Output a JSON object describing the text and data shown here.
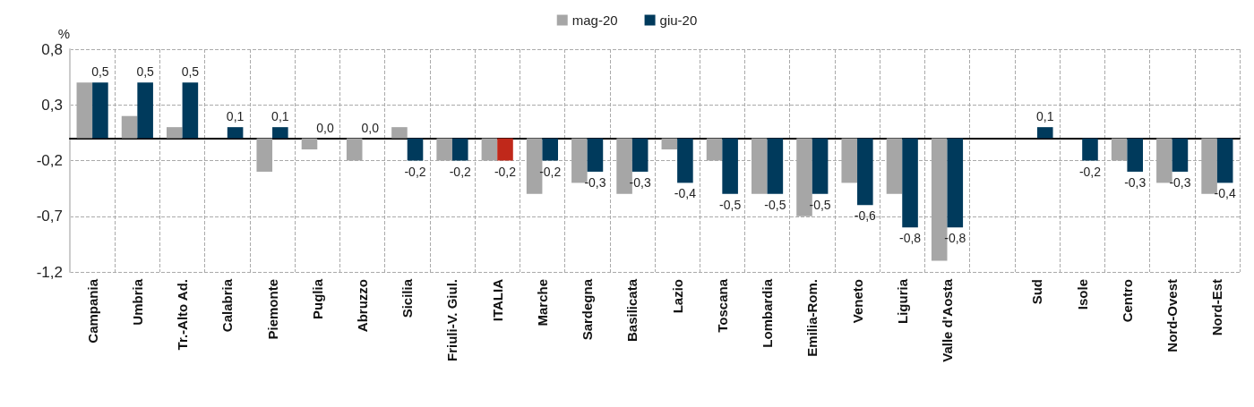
{
  "chart_data": {
    "type": "bar",
    "ylabel": "%",
    "categories": [
      "Campania",
      "Umbria",
      "Tr.-Alto Ad.",
      "Calabria",
      "Piemonte",
      "Puglia",
      "Abruzzo",
      "Sicilia",
      "Friuli-V. Giul.",
      "ITALIA",
      "Marche",
      "Sardegna",
      "Basilicata",
      "Lazio",
      "Toscana",
      "Lombardia",
      "Emilia-Rom.",
      "Veneto",
      "Liguria",
      "Valle d'Aosta",
      null,
      "Sud",
      "Isole",
      "Centro",
      "Nord-Ovest",
      "Nord-Est"
    ],
    "series": [
      {
        "name": "mag-20",
        "color": "#a6a6a6",
        "values": [
          0.5,
          0.2,
          0.1,
          0.0,
          -0.3,
          -0.1,
          -0.2,
          0.1,
          -0.2,
          -0.2,
          -0.5,
          -0.4,
          -0.5,
          -0.1,
          -0.2,
          -0.5,
          -0.7,
          -0.4,
          -0.5,
          -1.1,
          null,
          0.0,
          0.0,
          -0.2,
          -0.4,
          -0.5
        ]
      },
      {
        "name": "giu-20",
        "color": "#003a5c",
        "colors": [
          "#003a5c",
          "#003a5c",
          "#003a5c",
          "#003a5c",
          "#003a5c",
          "#003a5c",
          "#003a5c",
          "#003a5c",
          "#003a5c",
          "#c0281a",
          "#003a5c",
          "#003a5c",
          "#003a5c",
          "#003a5c",
          "#003a5c",
          "#003a5c",
          "#003a5c",
          "#003a5c",
          "#003a5c",
          "#003a5c",
          null,
          "#003a5c",
          "#003a5c",
          "#003a5c",
          "#003a5c",
          "#003a5c"
        ],
        "values": [
          0.5,
          0.5,
          0.5,
          0.1,
          0.1,
          0.0,
          0.0,
          -0.2,
          -0.2,
          -0.2,
          -0.2,
          -0.3,
          -0.3,
          -0.4,
          -0.5,
          -0.5,
          -0.5,
          -0.6,
          -0.8,
          -0.8,
          null,
          0.1,
          -0.2,
          -0.3,
          -0.3,
          -0.4
        ],
        "value_labels": [
          "0,5",
          "0,5",
          "0,5",
          "0,1",
          "0,1",
          "0,0",
          "0,0",
          "-0,2",
          "-0,2",
          "-0,2",
          "-0,2",
          "-0,3",
          "-0,3",
          "-0,4",
          "-0,5",
          "-0,5",
          "-0,5",
          "-0,6",
          "-0,8",
          "-0,8",
          null,
          "0,1",
          "-0,2",
          "-0,3",
          "-0,3",
          "-0,4"
        ]
      }
    ],
    "ylim": [
      -1.2,
      0.8
    ],
    "yticks": [
      {
        "value": -1.2,
        "label": "-1,2"
      },
      {
        "value": -0.7,
        "label": "-0,7"
      },
      {
        "value": -0.2,
        "label": "-0,2"
      },
      {
        "value": 0.3,
        "label": "0,3"
      },
      {
        "value": 0.8,
        "label": "0,8"
      }
    ],
    "grid": true,
    "legend": "top"
  }
}
